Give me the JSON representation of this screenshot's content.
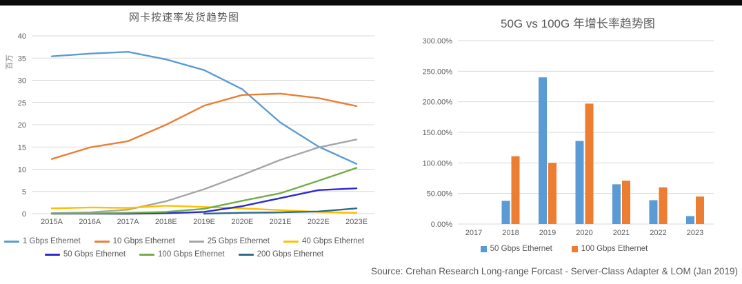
{
  "page": {
    "source_note": "Source: Crehan Research Long-range Forcast - Server-Class Adapter & LOM (Jan 2019)"
  },
  "chart_data": [
    {
      "type": "line",
      "title": "网卡按速率发货趋势图",
      "ylabel": "百万",
      "xlabel": "",
      "grid": true,
      "legend_position": "bottom",
      "ylim": [
        0,
        40
      ],
      "ytick_step": 5,
      "categories": [
        "2015A",
        "2016A",
        "2017A",
        "2018E",
        "2019E",
        "2020E",
        "2021E",
        "2022E",
        "2023E"
      ],
      "series": [
        {
          "name": "1 Gbps Ethernet",
          "color": "#5B9BD5",
          "values": [
            35.4,
            36.0,
            36.4,
            34.7,
            32.3,
            28.0,
            20.5,
            15.1,
            11.2
          ]
        },
        {
          "name": "10 Gbps Ethernet",
          "color": "#ED7D31",
          "values": [
            12.3,
            14.9,
            16.3,
            20.0,
            24.3,
            26.7,
            27.0,
            26.0,
            24.2
          ]
        },
        {
          "name": "25 Gbps Ethernet",
          "color": "#A5A5A5",
          "values": [
            0.1,
            0.3,
            0.9,
            2.8,
            5.5,
            8.7,
            12.1,
            14.9,
            16.7
          ]
        },
        {
          "name": "40 Gbps Ethernet",
          "color": "#FFC000",
          "values": [
            1.2,
            1.4,
            1.3,
            1.8,
            1.5,
            1.2,
            0.8,
            0.4,
            0.2
          ]
        },
        {
          "name": "50 Gbps Ethernet",
          "color": "#2A2AD0",
          "values": [
            0,
            0,
            0,
            0.1,
            0.4,
            1.7,
            3.5,
            5.3,
            5.7
          ]
        },
        {
          "name": "100 Gbps Ethernet",
          "color": "#70AD47",
          "values": [
            0,
            0.05,
            0.2,
            0.4,
            1.1,
            2.9,
            4.6,
            7.4,
            10.3
          ]
        },
        {
          "name": "200 Gbps Ethernet",
          "color": "#2E6B8C",
          "values": [
            null,
            null,
            null,
            null,
            0,
            0.2,
            0.3,
            0.5,
            1.2
          ]
        }
      ]
    },
    {
      "type": "bar",
      "title": "50G vs 100G 年增长率趋势图",
      "xlabel": "",
      "grid": true,
      "legend_position": "bottom",
      "ylim": [
        0,
        300
      ],
      "ytick_step": 50,
      "ytick_format": "0.00%",
      "categories": [
        "2017",
        "2018",
        "2019",
        "2020",
        "2021",
        "2022",
        "2023"
      ],
      "series": [
        {
          "name": "50 Gbps Ethernet",
          "color": "#5B9BD5",
          "values": [
            0,
            38,
            240,
            136,
            65,
            39,
            13
          ]
        },
        {
          "name": "100 Gbps Ethernet",
          "color": "#ED7D31",
          "values": [
            0,
            111,
            100,
            197,
            71,
            60,
            45
          ]
        }
      ]
    }
  ]
}
